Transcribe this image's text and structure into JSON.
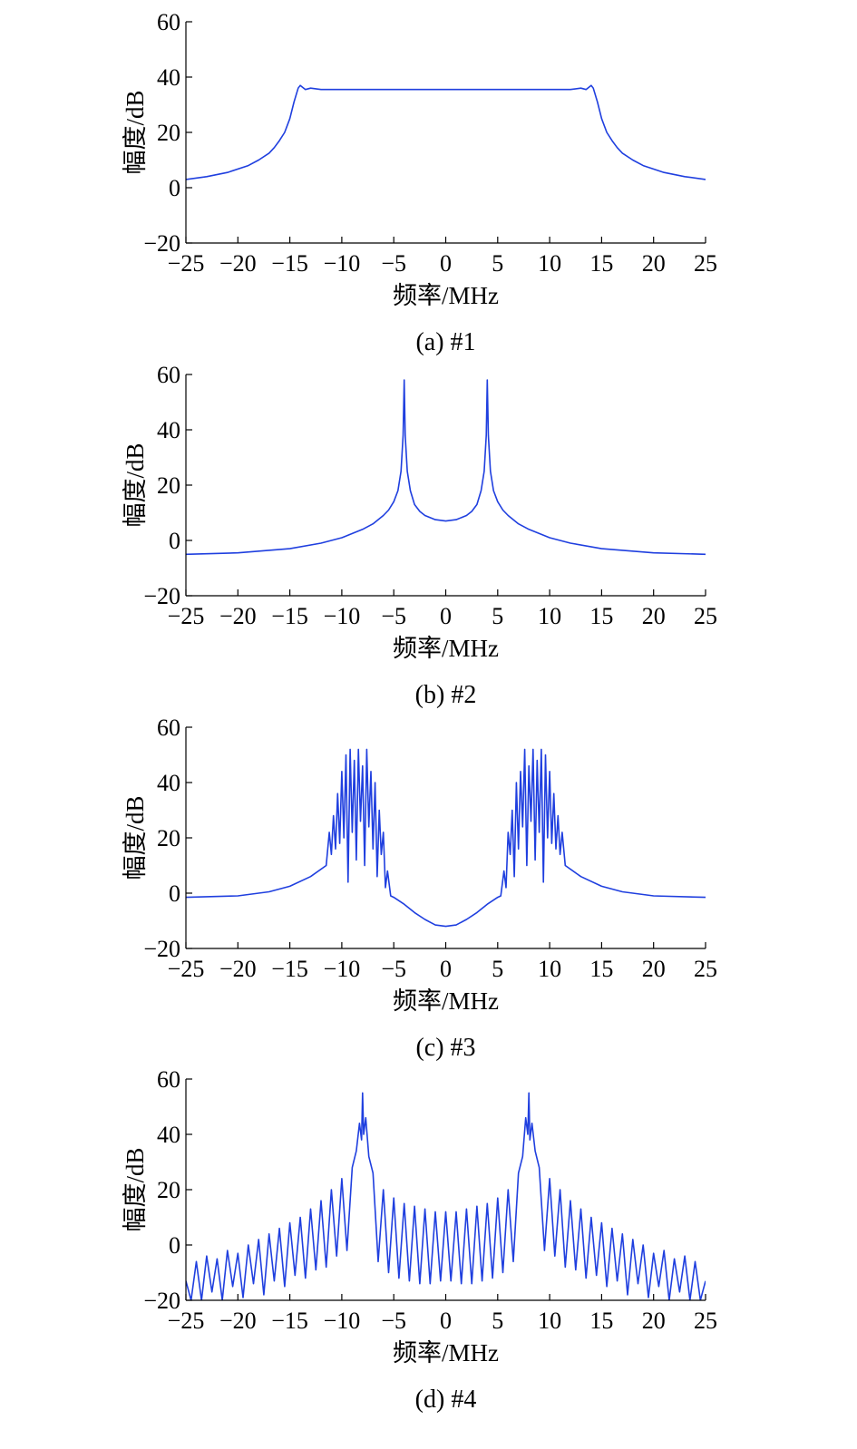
{
  "chart_data": [
    {
      "type": "line",
      "caption": "(a) #1",
      "xlabel": "频率/MHz",
      "ylabel": "幅度/dB",
      "xlim": [
        -25,
        25
      ],
      "ylim": [
        -20,
        60
      ],
      "xticks": [
        -25,
        -20,
        -15,
        -10,
        -5,
        0,
        5,
        10,
        15,
        20,
        25
      ],
      "yticks": [
        -20,
        0,
        20,
        40,
        60
      ],
      "xtick_labels": [
        "−25",
        "−20",
        "−15",
        "−10",
        "−5",
        "0",
        "5",
        "10",
        "15",
        "20",
        "25"
      ],
      "ytick_labels": [
        "−20",
        "0",
        "20",
        "40",
        "60"
      ],
      "grid": false,
      "series_color": "#1f3fdf",
      "x": [
        -25,
        -23,
        -21,
        -19,
        -18,
        -17,
        -16.5,
        -16,
        -15.5,
        -15,
        -14.6,
        -14.2,
        -14,
        -13.5,
        -13,
        -12,
        -10,
        -5,
        0,
        5,
        10,
        12,
        13,
        13.5,
        14,
        14.2,
        14.6,
        15,
        15.5,
        16,
        16.5,
        17,
        18,
        19,
        21,
        23,
        25
      ],
      "y": [
        3,
        4,
        5.5,
        8,
        10,
        12.5,
        14.5,
        17,
        20,
        25,
        31,
        36,
        37,
        35.5,
        36,
        35.5,
        35.5,
        35.5,
        35.5,
        35.5,
        35.5,
        35.5,
        36,
        35.5,
        37,
        36,
        31,
        25,
        20,
        17,
        14.5,
        12.5,
        10,
        8,
        5.5,
        4,
        3
      ]
    },
    {
      "type": "line",
      "caption": "(b) #2",
      "xlabel": "频率/MHz",
      "ylabel": "幅度/dB",
      "xlim": [
        -25,
        25
      ],
      "ylim": [
        -20,
        60
      ],
      "xticks": [
        -25,
        -20,
        -15,
        -10,
        -5,
        0,
        5,
        10,
        15,
        20,
        25
      ],
      "yticks": [
        -20,
        0,
        20,
        40,
        60
      ],
      "xtick_labels": [
        "−25",
        "−20",
        "−15",
        "−10",
        "−5",
        "0",
        "5",
        "10",
        "15",
        "20",
        "25"
      ],
      "ytick_labels": [
        "−20",
        "0",
        "20",
        "40",
        "60"
      ],
      "grid": false,
      "series_color": "#1f3fdf",
      "x": [
        -25,
        -20,
        -15,
        -12,
        -10,
        -8,
        -7,
        -6,
        -5.5,
        -5,
        -4.6,
        -4.3,
        -4.1,
        -4.0,
        -3.9,
        -3.7,
        -3.4,
        -3.0,
        -2.5,
        -2,
        -1,
        0,
        1,
        2,
        2.5,
        3.0,
        3.4,
        3.7,
        3.9,
        4.0,
        4.1,
        4.3,
        4.6,
        5,
        5.5,
        6,
        7,
        8,
        10,
        12,
        15,
        20,
        25
      ],
      "y": [
        -5,
        -4.5,
        -3,
        -1,
        1,
        4,
        6,
        9,
        11,
        14,
        18,
        25,
        38,
        58,
        38,
        25,
        18,
        13,
        10.5,
        9,
        7.5,
        7,
        7.5,
        9,
        10.5,
        13,
        18,
        25,
        38,
        58,
        38,
        25,
        18,
        14,
        11,
        9,
        6,
        4,
        1,
        -1,
        -3,
        -4.5,
        -5
      ]
    },
    {
      "type": "line",
      "caption": "(c) #3",
      "xlabel": "频率/MHz",
      "ylabel": "幅度/dB",
      "xlim": [
        -25,
        25
      ],
      "ylim": [
        -20,
        60
      ],
      "xticks": [
        -25,
        -20,
        -15,
        -10,
        -5,
        0,
        5,
        10,
        15,
        20,
        25
      ],
      "yticks": [
        -20,
        0,
        20,
        40,
        60
      ],
      "xtick_labels": [
        "−25",
        "−20",
        "−15",
        "−10",
        "−5",
        "0",
        "5",
        "10",
        "15",
        "20",
        "25"
      ],
      "ytick_labels": [
        "−20",
        "0",
        "20",
        "40",
        "60"
      ],
      "grid": false,
      "series_color": "#1f3fdf",
      "x": [
        -25,
        -20,
        -17,
        -15,
        -13,
        -11.5,
        -11.2,
        -11,
        -10.8,
        -10.6,
        -10.4,
        -10.2,
        -10,
        -9.8,
        -9.6,
        -9.4,
        -9.2,
        -9,
        -8.8,
        -8.6,
        -8.4,
        -8.2,
        -8,
        -7.8,
        -7.6,
        -7.4,
        -7.2,
        -7,
        -6.8,
        -6.6,
        -6.4,
        -6.2,
        -6,
        -5.8,
        -5.6,
        -5.3,
        -5,
        -4,
        -3,
        -2,
        -1,
        0,
        1,
        2,
        3,
        4,
        5,
        5.3,
        5.6,
        5.8,
        6,
        6.2,
        6.4,
        6.6,
        6.8,
        7,
        7.2,
        7.4,
        7.6,
        7.8,
        8,
        8.2,
        8.4,
        8.6,
        8.8,
        9,
        9.2,
        9.4,
        9.6,
        9.8,
        10,
        10.2,
        10.4,
        10.6,
        10.8,
        11,
        11.2,
        11.5,
        13,
        15,
        17,
        20,
        25
      ],
      "y": [
        -1.5,
        -1,
        0.5,
        2.5,
        6,
        10,
        22,
        14,
        28,
        16,
        36,
        18,
        44,
        20,
        50,
        4,
        52,
        22,
        48,
        12,
        52,
        26,
        46,
        10,
        52,
        24,
        44,
        16,
        40,
        6,
        30,
        14,
        22,
        2,
        8,
        -1,
        -1.5,
        -4,
        -7,
        -9.5,
        -11.5,
        -12,
        -11.5,
        -9.5,
        -7,
        -4,
        -1.5,
        -1,
        8,
        2,
        22,
        14,
        30,
        6,
        40,
        16,
        44,
        24,
        52,
        10,
        46,
        26,
        52,
        12,
        48,
        22,
        52,
        4,
        50,
        20,
        44,
        18,
        36,
        16,
        28,
        14,
        22,
        10,
        6,
        2.5,
        0.5,
        -1,
        -1.5
      ]
    },
    {
      "type": "line",
      "caption": "(d) #4",
      "xlabel": "频率/MHz",
      "ylabel": "幅度/dB",
      "xlim": [
        -25,
        25
      ],
      "ylim": [
        -20,
        60
      ],
      "xticks": [
        -25,
        -20,
        -15,
        -10,
        -5,
        0,
        5,
        10,
        15,
        20,
        25
      ],
      "yticks": [
        -20,
        0,
        20,
        40,
        60
      ],
      "xtick_labels": [
        "−25",
        "−20",
        "−15",
        "−10",
        "−5",
        "0",
        "5",
        "10",
        "15",
        "20",
        "25"
      ],
      "ytick_labels": [
        "−20",
        "0",
        "20",
        "40",
        "60"
      ],
      "grid": false,
      "series_color": "#1f3fdf",
      "x": [
        -25,
        -24.5,
        -24,
        -23.5,
        -23,
        -22.5,
        -22,
        -21.5,
        -21,
        -20.5,
        -20,
        -19.5,
        -19,
        -18.5,
        -18,
        -17.5,
        -17,
        -16.5,
        -16,
        -15.5,
        -15,
        -14.5,
        -14,
        -13.5,
        -13,
        -12.5,
        -12,
        -11.5,
        -11,
        -10.5,
        -10,
        -9.5,
        -9,
        -8.6,
        -8.3,
        -8.1,
        -8.0,
        -7.9,
        -7.7,
        -7.4,
        -7,
        -6.5,
        -6,
        -5.5,
        -5,
        -4.5,
        -4,
        -3.5,
        -3,
        -2.5,
        -2,
        -1.5,
        -1,
        -0.5,
        0,
        0.5,
        1,
        1.5,
        2,
        2.5,
        3,
        3.5,
        4,
        4.5,
        5,
        5.5,
        6,
        6.5,
        7,
        7.4,
        7.7,
        7.9,
        8.0,
        8.1,
        8.3,
        8.6,
        9,
        9.5,
        10,
        10.5,
        11,
        11.5,
        12,
        12.5,
        13,
        13.5,
        14,
        14.5,
        15,
        15.5,
        16,
        16.5,
        17,
        17.5,
        18,
        18.5,
        19,
        19.5,
        20,
        20.5,
        21,
        21.5,
        22,
        22.5,
        23,
        23.5,
        24,
        24.5,
        25
      ],
      "y": [
        -13,
        -20,
        -6,
        -20,
        -4,
        -17,
        -5,
        -20,
        -2,
        -15,
        -3,
        -19,
        0,
        -14,
        2,
        -18,
        4,
        -13,
        6,
        -15,
        8,
        -11,
        10,
        -12,
        13,
        -9,
        16,
        -8,
        20,
        -4,
        24,
        -2,
        28,
        34,
        44,
        38,
        55,
        40,
        46,
        32,
        26,
        -6,
        20,
        -10,
        17,
        -12,
        15,
        -13,
        14,
        -14,
        13,
        -14,
        12,
        -13,
        12,
        -13,
        12,
        -14,
        13,
        -14,
        14,
        -13,
        15,
        -12,
        17,
        -10,
        20,
        -6,
        26,
        32,
        46,
        40,
        55,
        38,
        44,
        34,
        28,
        -2,
        24,
        -4,
        20,
        -8,
        16,
        -9,
        13,
        -12,
        10,
        -11,
        8,
        -15,
        6,
        -13,
        4,
        -18,
        2,
        -14,
        0,
        -19,
        -3,
        -15,
        -2,
        -20,
        -5,
        -17,
        -4,
        -20,
        -6,
        -20,
        -13
      ]
    }
  ]
}
